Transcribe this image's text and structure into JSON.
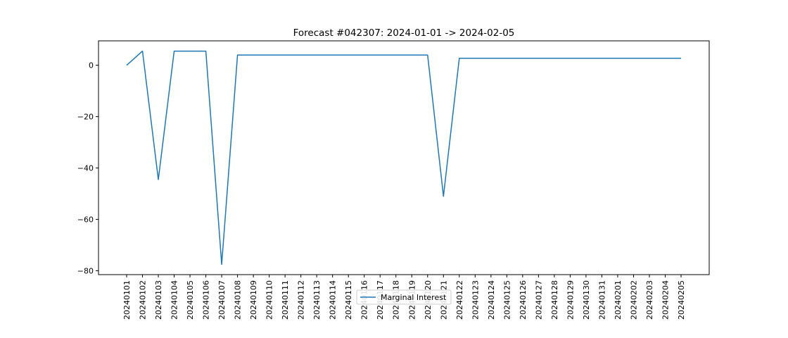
{
  "chart_data": {
    "type": "line",
    "title": "Forecast #042307: 2024-01-01 -> 2024-02-05",
    "xlabel": "",
    "ylabel": "",
    "categories": [
      "20240101",
      "20240102",
      "20240103",
      "20240104",
      "20240105",
      "20240106",
      "20240107",
      "20240108",
      "20240109",
      "20240110",
      "20240111",
      "20240112",
      "20240113",
      "20240114",
      "20240115",
      "20240116",
      "20240117",
      "20240118",
      "20240119",
      "20240120",
      "20240121",
      "20240122",
      "20240123",
      "20240124",
      "20240125",
      "20240126",
      "20240127",
      "20240128",
      "20240129",
      "20240130",
      "20240131",
      "20240201",
      "20240202",
      "20240203",
      "20240204",
      "20240205"
    ],
    "series": [
      {
        "name": "Marginal Interest",
        "color": "#1f77b4",
        "values": [
          0,
          5.5,
          -44.5,
          5.5,
          5.5,
          5.5,
          -77.5,
          4,
          4,
          4,
          4,
          4,
          4,
          4,
          4,
          4,
          4,
          4,
          4,
          4,
          -51,
          2.7,
          2.7,
          2.7,
          2.7,
          2.7,
          2.7,
          2.7,
          2.7,
          2.7,
          2.7,
          2.7,
          2.7,
          2.7,
          2.7,
          2.7
        ]
      }
    ],
    "ylim": [
      -81.5,
      9.5
    ],
    "yticks": [
      0,
      -20,
      -40,
      -60,
      -80
    ],
    "ytick_labels": [
      "0",
      "−20",
      "−40",
      "−60",
      "−80"
    ],
    "grid": false,
    "legend_position": "bottom-center"
  }
}
